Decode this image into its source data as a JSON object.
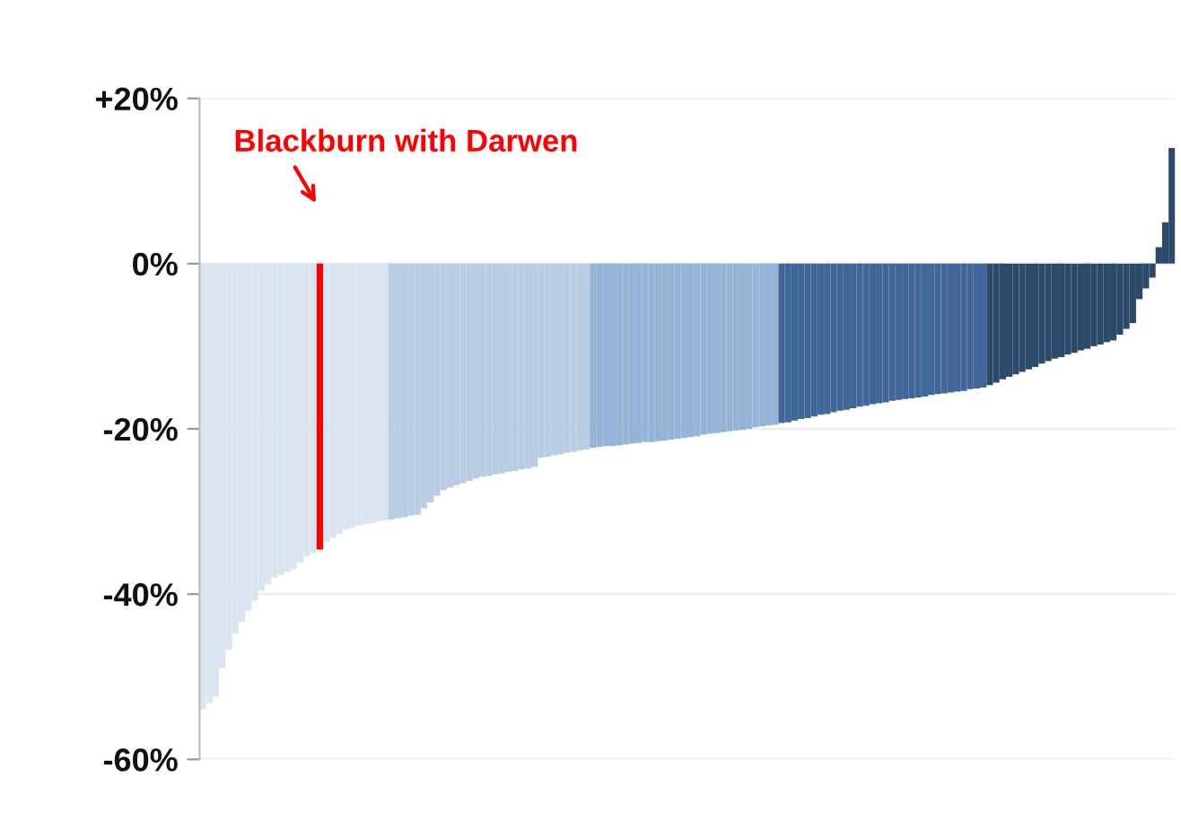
{
  "chart_data": {
    "type": "bar",
    "categories": [
      null,
      null,
      null,
      null,
      null,
      null,
      null,
      null,
      null,
      null,
      null,
      null,
      null,
      null,
      null,
      null,
      null,
      null,
      null,
      null,
      null,
      null,
      null,
      null,
      null,
      null,
      null,
      null,
      null,
      null,
      null,
      null,
      null,
      null,
      null,
      null,
      null,
      null,
      null,
      null,
      null,
      null,
      null,
      null,
      null,
      null,
      null,
      null,
      null,
      null,
      null,
      null,
      null,
      null,
      null,
      null,
      null,
      null,
      null,
      null,
      null,
      null,
      null,
      null,
      null,
      null,
      null,
      null,
      null,
      null,
      null,
      null,
      null,
      null,
      null,
      null,
      null,
      null,
      null,
      null,
      null,
      null,
      null,
      null,
      null,
      null,
      null,
      null,
      null,
      null,
      null,
      null,
      null,
      null,
      null,
      null,
      null,
      null,
      null,
      null,
      null,
      null,
      null,
      null,
      null,
      null,
      null,
      null,
      null,
      null,
      null,
      null,
      null,
      null,
      null,
      null,
      null,
      null,
      null,
      null,
      null,
      null,
      null,
      null,
      null,
      null,
      null,
      null,
      null,
      null,
      null,
      null,
      null,
      null,
      null,
      null,
      null,
      null,
      null,
      null,
      null,
      null,
      null,
      null,
      null,
      null,
      null,
      null,
      null,
      null
    ],
    "values": [
      -54,
      -53.2,
      -52.4,
      -49,
      -46.7,
      -44.8,
      -43.4,
      -42,
      -40.8,
      -39.6,
      -38.8,
      -38,
      -37.7,
      -37.3,
      -37,
      -36.2,
      -35.4,
      -35,
      -34.6,
      -33.7,
      -33.2,
      -32.7,
      -32.2,
      -32,
      -31.7,
      -31.5,
      -31.4,
      -31.2,
      -31.1,
      -31,
      -30.8,
      -30.7,
      -30.5,
      -30.4,
      -29.6,
      -28.9,
      -28.1,
      -27.4,
      -27.1,
      -26.8,
      -26.6,
      -26.3,
      -26,
      -25.8,
      -25.7,
      -25.5,
      -25.4,
      -25.2,
      -25.1,
      -24.9,
      -24.8,
      -24.6,
      -23.5,
      -23.4,
      -23.2,
      -23.1,
      -22.9,
      -22.8,
      -22.6,
      -22.5,
      -22.3,
      -22.2,
      -22.1,
      -22.1,
      -22,
      -21.9,
      -21.8,
      -21.7,
      -21.6,
      -21.6,
      -21.5,
      -21.4,
      -21.3,
      -21.2,
      -21.1,
      -21,
      -20.9,
      -20.7,
      -20.6,
      -20.5,
      -20.4,
      -20.3,
      -20.2,
      -20.1,
      -20,
      -19.8,
      -19.7,
      -19.6,
      -19.5,
      -19.3,
      -19.2,
      -19,
      -18.8,
      -18.7,
      -18.5,
      -18.3,
      -18.2,
      -18,
      -17.8,
      -17.7,
      -17.5,
      -17.3,
      -17.2,
      -17,
      -16.9,
      -16.8,
      -16.6,
      -16.5,
      -16.4,
      -16.3,
      -16.2,
      -16.1,
      -15.9,
      -15.8,
      -15.7,
      -15.6,
      -15.5,
      -15.4,
      -15.2,
      -15.1,
      -15,
      -14.7,
      -14.4,
      -14,
      -13.7,
      -13.4,
      -13.1,
      -12.8,
      -12.5,
      -12.1,
      -11.8,
      -11.5,
      -11.3,
      -11,
      -10.8,
      -10.5,
      -10.3,
      -10,
      -9.8,
      -9.5,
      -9.3,
      -8.6,
      -7.9,
      -7.2,
      -4.3,
      -3,
      -1.7,
      2,
      5,
      14
    ],
    "colors": [
      "#dbe5f1",
      "#dbe5f1",
      "#dbe5f1",
      "#dbe5f1",
      "#dbe5f1",
      "#dbe5f1",
      "#dbe5f1",
      "#dbe5f1",
      "#dbe5f1",
      "#dbe5f1",
      "#dbe5f1",
      "#dbe5f1",
      "#dbe5f1",
      "#dbe5f1",
      "#dbe5f1",
      "#dbe5f1",
      "#dbe5f1",
      "#dbe5f1",
      "#ff0000",
      "#dbe5f1",
      "#dbe5f1",
      "#dbe5f1",
      "#dbe5f1",
      "#dbe5f1",
      "#dbe5f1",
      "#dbe5f1",
      "#dbe5f1",
      "#dbe5f1",
      "#dbe5f1",
      "#b8cce4",
      "#b8cce4",
      "#b8cce4",
      "#b8cce4",
      "#b8cce4",
      "#b8cce4",
      "#b8cce4",
      "#b8cce4",
      "#b8cce4",
      "#b8cce4",
      "#b8cce4",
      "#b8cce4",
      "#b8cce4",
      "#b8cce4",
      "#b8cce4",
      "#b8cce4",
      "#b8cce4",
      "#b8cce4",
      "#b8cce4",
      "#b8cce4",
      "#b8cce4",
      "#b8cce4",
      "#b8cce4",
      "#b8cce4",
      "#b8cce4",
      "#b8cce4",
      "#b8cce4",
      "#b8cce4",
      "#b8cce4",
      "#b8cce4",
      "#b8cce4",
      "#95b3d7",
      "#95b3d7",
      "#95b3d7",
      "#95b3d7",
      "#95b3d7",
      "#95b3d7",
      "#95b3d7",
      "#95b3d7",
      "#95b3d7",
      "#95b3d7",
      "#95b3d7",
      "#95b3d7",
      "#95b3d7",
      "#95b3d7",
      "#95b3d7",
      "#95b3d7",
      "#95b3d7",
      "#95b3d7",
      "#95b3d7",
      "#95b3d7",
      "#95b3d7",
      "#95b3d7",
      "#95b3d7",
      "#95b3d7",
      "#95b3d7",
      "#95b3d7",
      "#95b3d7",
      "#95b3d7",
      "#95b3d7",
      "#41679a",
      "#41679a",
      "#41679a",
      "#41679a",
      "#41679a",
      "#41679a",
      "#41679a",
      "#41679a",
      "#41679a",
      "#41679a",
      "#41679a",
      "#41679a",
      "#41679a",
      "#41679a",
      "#41679a",
      "#41679a",
      "#41679a",
      "#41679a",
      "#41679a",
      "#41679a",
      "#41679a",
      "#41679a",
      "#41679a",
      "#41679a",
      "#41679a",
      "#41679a",
      "#41679a",
      "#41679a",
      "#41679a",
      "#41679a",
      "#41679a",
      "#41679a",
      "#2e4a6b",
      "#2e4a6b",
      "#2e4a6b",
      "#2e4a6b",
      "#2e4a6b",
      "#2e4a6b",
      "#2e4a6b",
      "#2e4a6b",
      "#2e4a6b",
      "#2e4a6b",
      "#2e4a6b",
      "#2e4a6b",
      "#2e4a6b",
      "#2e4a6b",
      "#2e4a6b",
      "#2e4a6b",
      "#2e4a6b",
      "#2e4a6b",
      "#2e4a6b",
      "#2e4a6b",
      "#2e4a6b",
      "#2e4a6b",
      "#2e4a6b",
      "#2e4a6b",
      "#2e4a6b",
      "#2e4a6b",
      "#2e4a6b",
      "#2e4a6b",
      "#2e4a6b"
    ],
    "ylim": [
      -60,
      20
    ],
    "yticks": [
      {
        "value": 20,
        "label": "+20%"
      },
      {
        "value": 0,
        "label": "0%"
      },
      {
        "value": -20,
        "label": "-20%"
      },
      {
        "value": -40,
        "label": "-40%"
      },
      {
        "value": -60,
        "label": "-60%"
      }
    ],
    "grid": "y",
    "legend": false,
    "annotations": [
      "Blackburn with Darwen"
    ]
  }
}
